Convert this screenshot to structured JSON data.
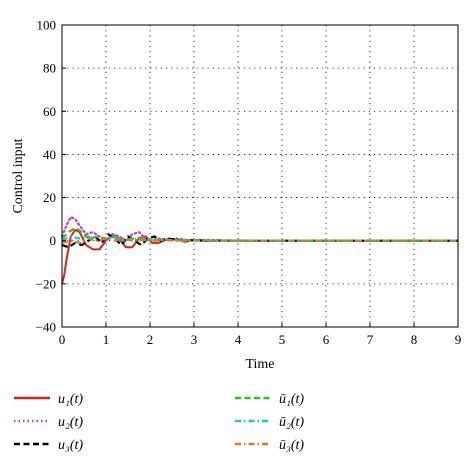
{
  "chart_data": {
    "type": "line",
    "xlabel": "Time",
    "ylabel": "Control input",
    "xlim": [
      0,
      9
    ],
    "ylim": [
      -40,
      100
    ],
    "xticks": [
      0,
      1,
      2,
      3,
      4,
      5,
      6,
      7,
      8,
      9
    ],
    "yticks": [
      -40,
      -20,
      0,
      20,
      40,
      60,
      80,
      100
    ],
    "grid": true,
    "legend_position": "below",
    "series": [
      {
        "name": "u1(t)",
        "legend_label": "u₁(t)",
        "color": "#e0201b",
        "style": "solid",
        "x": [
          0,
          0.05,
          0.1,
          0.2,
          0.3,
          0.4,
          0.55,
          0.7,
          0.85,
          1.0,
          1.15,
          1.3,
          1.45,
          1.6,
          1.75,
          1.9,
          2.05,
          2.2,
          2.4,
          2.6,
          2.8,
          3.0,
          3.3,
          3.6,
          4.0,
          5.0,
          6.0,
          7.0,
          8.0,
          9.0
        ],
        "y": [
          -20,
          -16,
          -9,
          2,
          5,
          4,
          -2,
          -4,
          -4,
          0,
          3,
          1,
          -3,
          -3,
          1,
          2,
          -1,
          -1,
          0.8,
          0.5,
          -0.5,
          0.3,
          -0.2,
          0.1,
          0,
          0,
          0,
          0,
          0,
          0
        ]
      },
      {
        "name": "u2(t)",
        "legend_label": "u₂(t)",
        "color": "#c23cd6",
        "style": "dotted",
        "x": [
          0,
          0.1,
          0.2,
          0.3,
          0.4,
          0.55,
          0.7,
          0.85,
          1.0,
          1.15,
          1.3,
          1.45,
          1.6,
          1.75,
          1.9,
          2.05,
          2.2,
          2.4,
          2.6,
          2.8,
          3.0,
          3.3,
          3.6,
          4.0,
          5.0,
          6.0,
          7.0,
          8.0,
          9.0
        ],
        "y": [
          2,
          7,
          11,
          10,
          7,
          3,
          4,
          2,
          0,
          3,
          2,
          0,
          3,
          4,
          1,
          0,
          1,
          0.5,
          1,
          0.5,
          0.3,
          0.4,
          0.2,
          0.1,
          0,
          0,
          0,
          0,
          0
        ]
      },
      {
        "name": "u3(t)",
        "legend_label": "u₃(t)",
        "color": "#000000",
        "style": "dashed",
        "x": [
          0,
          0.15,
          0.3,
          0.45,
          0.6,
          0.75,
          0.9,
          1.05,
          1.2,
          1.35,
          1.5,
          1.65,
          1.8,
          1.95,
          2.1,
          2.25,
          2.4,
          2.6,
          2.8,
          3.0,
          3.3,
          3.6,
          4.0,
          5.0,
          6.0,
          7.0,
          8.0,
          9.0
        ],
        "y": [
          -2,
          -3,
          -1,
          -2,
          0,
          2,
          -1,
          3,
          1,
          -2,
          2,
          0,
          -2,
          1,
          2,
          0,
          1,
          0.5,
          0,
          0.3,
          0,
          0.1,
          0,
          0,
          0,
          0,
          0,
          0
        ]
      },
      {
        "name": "ū1(t)",
        "legend_label": "ū₁(t)",
        "color": "#22c51e",
        "style": "dashed",
        "x": [
          0,
          0.15,
          0.3,
          0.45,
          0.6,
          0.8,
          1.0,
          1.2,
          1.4,
          1.6,
          1.8,
          2.0,
          2.3,
          2.6,
          3.0,
          3.5,
          4.0,
          5.0,
          6.0,
          7.0,
          8.0,
          9.0
        ],
        "y": [
          1,
          4,
          6,
          4,
          1,
          2,
          1,
          2,
          0,
          1,
          1.5,
          0,
          0.5,
          0.2,
          0.2,
          0.1,
          0,
          0,
          0,
          0,
          0,
          0
        ]
      },
      {
        "name": "ū2(t)",
        "legend_label": "ū₂(t)",
        "color": "#1fc4d6",
        "style": "dashdot",
        "x": [
          0,
          0.2,
          0.4,
          0.6,
          0.8,
          1.0,
          1.2,
          1.4,
          1.6,
          1.8,
          2.0,
          2.3,
          2.6,
          3.0,
          3.5,
          4.0,
          5.0,
          6.0,
          7.0,
          8.0,
          9.0
        ],
        "y": [
          0,
          2,
          1,
          2,
          0,
          1,
          1.5,
          0,
          1,
          0.5,
          0.5,
          0.3,
          0.2,
          0.1,
          0,
          0,
          0,
          0,
          0,
          0,
          0
        ]
      },
      {
        "name": "ū3(t)",
        "legend_label": "ū₃(t)",
        "color": "#e07a1f",
        "style": "dashdot",
        "x": [
          0,
          0.2,
          0.4,
          0.6,
          0.8,
          1.0,
          1.2,
          1.4,
          1.6,
          1.8,
          2.0,
          2.3,
          2.6,
          3.0,
          3.5,
          4.0,
          5.0,
          6.0,
          7.0,
          8.0,
          9.0
        ],
        "y": [
          -1,
          0,
          -1,
          1,
          0,
          1,
          0,
          1,
          0,
          0.5,
          0,
          0.3,
          0,
          0.1,
          0,
          0,
          0,
          0,
          0,
          0,
          0
        ]
      }
    ]
  }
}
